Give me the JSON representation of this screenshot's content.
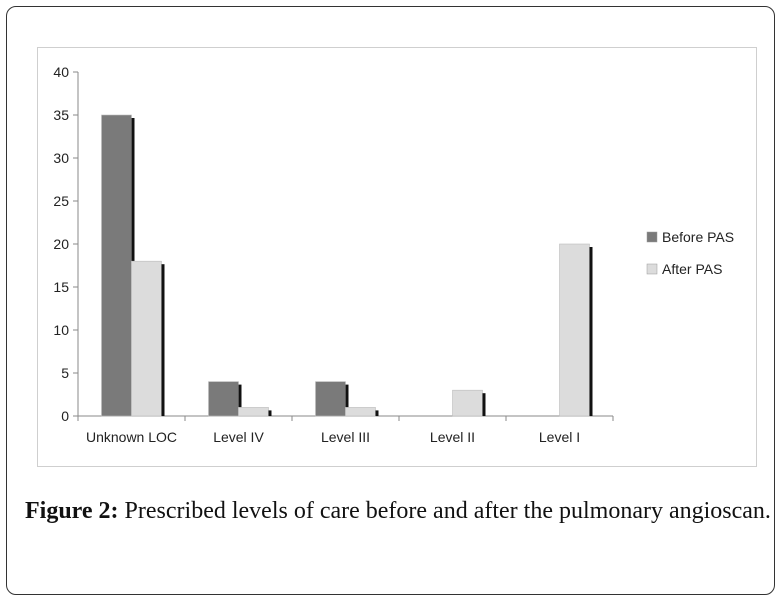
{
  "chart_data": {
    "type": "bar",
    "categories": [
      "Unknown LOC",
      "Level IV",
      "Level III",
      "Level II",
      "Level I"
    ],
    "series": [
      {
        "name": "Before PAS",
        "values": [
          35,
          4,
          4,
          0,
          0
        ],
        "color": "#7a7a7a"
      },
      {
        "name": "After PAS",
        "values": [
          18,
          1,
          1,
          3,
          20
        ],
        "color": "#dcdcdc"
      }
    ],
    "yticks": [
      "0",
      "5",
      "10",
      "15",
      "20",
      "25",
      "30",
      "35",
      "40"
    ],
    "ylim": [
      0,
      40
    ],
    "grid": false,
    "legend_position": "right"
  },
  "caption": {
    "label": "Figure 2:",
    "text": " Prescribed levels of care before and after the pulmonary angioscan."
  }
}
